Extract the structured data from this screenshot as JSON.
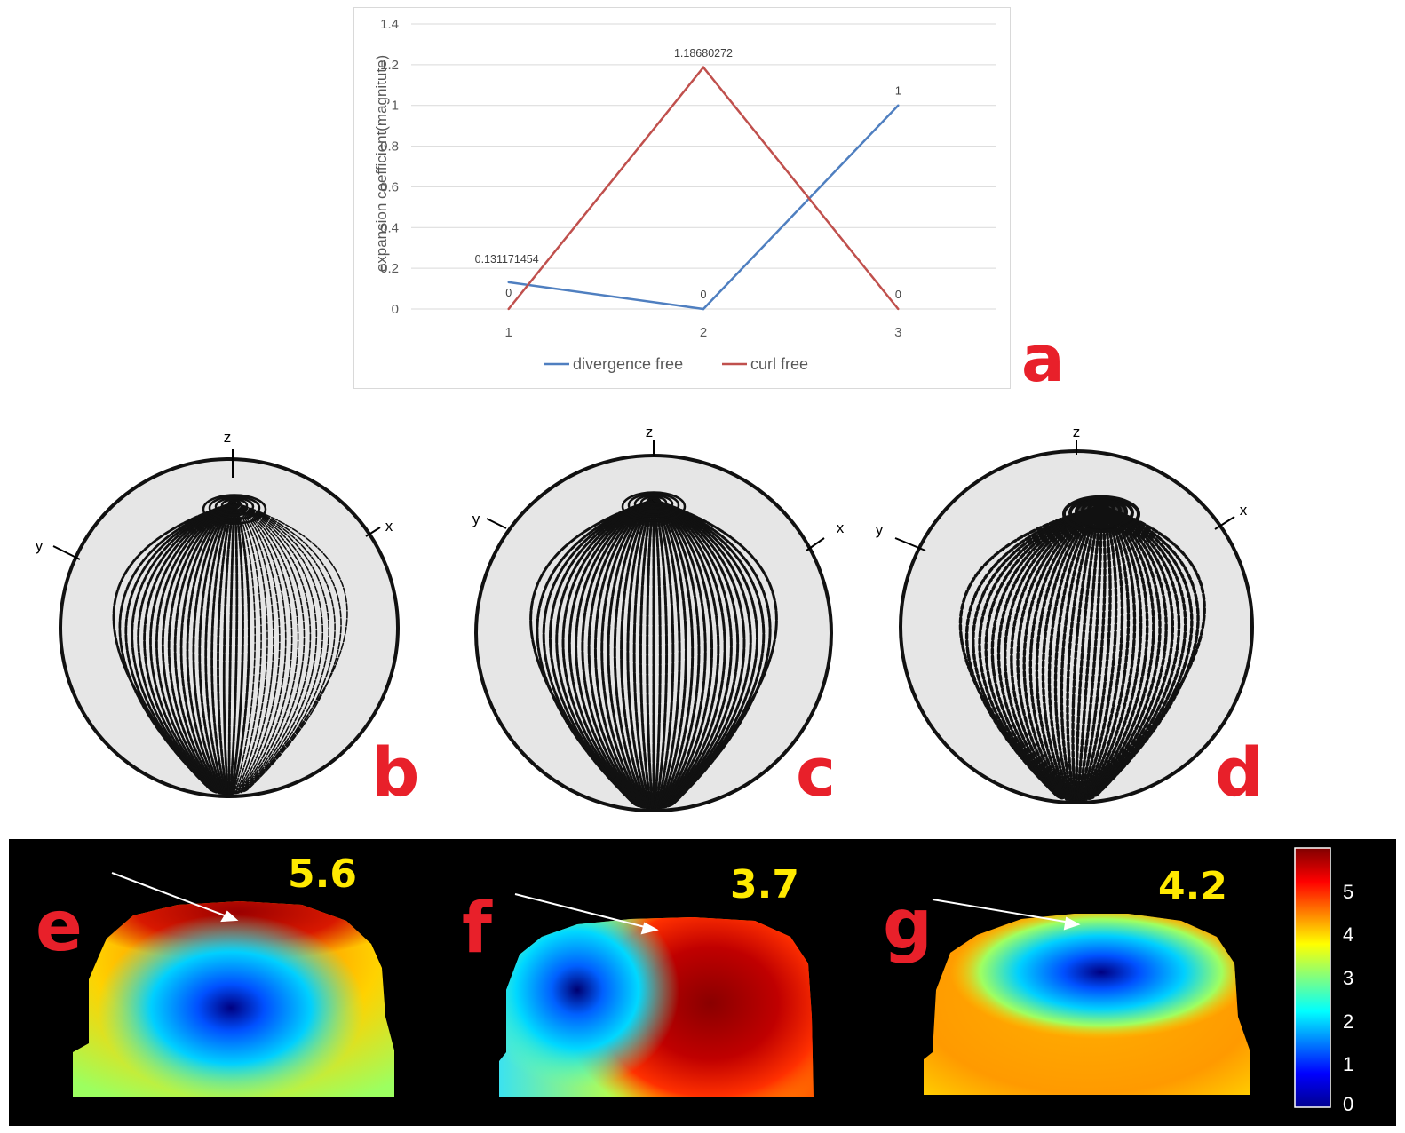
{
  "chart_data": {
    "type": "line",
    "title": "",
    "xlabel": "",
    "ylabel": "expansion coefficient(magnitute)",
    "categories": [
      "1",
      "2",
      "3"
    ],
    "ylim": [
      0,
      1.4
    ],
    "yticks": [
      "0",
      "0.2",
      "0.4",
      "0.6",
      "0.8",
      "1",
      "1.2",
      "1.4"
    ],
    "grid": true,
    "legend_position": "bottom",
    "series": [
      {
        "name": "divergence free",
        "color": "#4f7fc0",
        "values": [
          0.131171454,
          0,
          1
        ],
        "labels": [
          "0.131171454",
          "0",
          "1"
        ]
      },
      {
        "name": "curl free",
        "color": "#c0504d",
        "values": [
          0,
          1.18680272,
          0
        ],
        "labels": [
          "0",
          "1.18680272",
          "0"
        ]
      }
    ]
  },
  "panels": {
    "a": "a",
    "b": "b",
    "c": "c",
    "d": "d",
    "e": "e",
    "f": "f",
    "g": "g"
  },
  "spheres": [
    {
      "id": "b",
      "axes": {
        "z": "z",
        "x": "x",
        "y": "y"
      },
      "pole_tilt": 0.0
    },
    {
      "id": "c",
      "axes": {
        "z": "z",
        "x": "x",
        "y": "y"
      },
      "pole_tilt": 0.0
    },
    {
      "id": "d",
      "axes": {
        "z": "z",
        "x": "x",
        "y": "y"
      },
      "pole_tilt": 0.0
    }
  ],
  "heatmaps": [
    {
      "id": "e",
      "peak_value": "5.6"
    },
    {
      "id": "f",
      "peak_value": "3.7"
    },
    {
      "id": "g",
      "peak_value": "4.2"
    }
  ],
  "colorbar": {
    "range": [
      0,
      6
    ],
    "ticks": [
      "5",
      "4",
      "3",
      "2",
      "1",
      "0"
    ]
  },
  "colors": {
    "background": "#ffffff",
    "panel_letter": "#e8202a",
    "heat_value": "#ffe900",
    "heat_background": "#000000"
  }
}
